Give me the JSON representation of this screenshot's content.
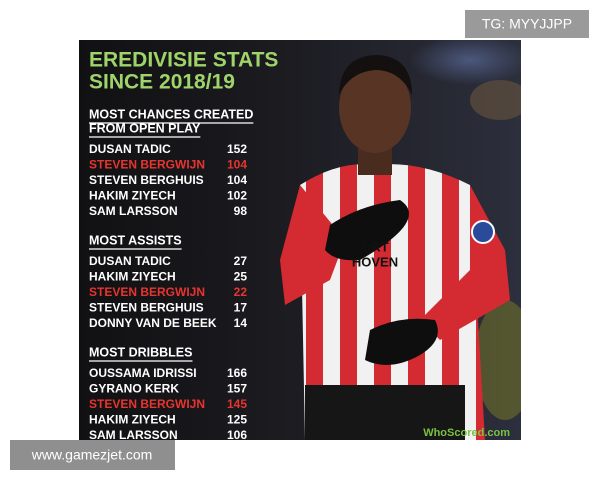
{
  "watermarks": {
    "top": "TG: MYYJJPP",
    "bottom": "www.gamezjet.com"
  },
  "title": [
    "EREDIVISIE STATS",
    "SINCE 2018/19"
  ],
  "highlight_color": "#e8342f",
  "sections": [
    {
      "heading": [
        "MOST CHANCES CREATED",
        "FROM OPEN PLAY"
      ],
      "rows": [
        {
          "name": "DUSAN TADIC",
          "value": 152
        },
        {
          "name": "STEVEN BERGWIJN",
          "value": 104,
          "highlight": true
        },
        {
          "name": "STEVEN BERGHUIS",
          "value": 104
        },
        {
          "name": "HAKIM ZIYECH",
          "value": 102
        },
        {
          "name": "SAM LARSSON",
          "value": 98
        }
      ]
    },
    {
      "heading": [
        "MOST ASSISTS"
      ],
      "rows": [
        {
          "name": "DUSAN TADIC",
          "value": 27
        },
        {
          "name": "HAKIM ZIYECH",
          "value": 25
        },
        {
          "name": "STEVEN BERGWIJN",
          "value": 22,
          "highlight": true
        },
        {
          "name": "STEVEN BERGHUIS",
          "value": 17
        },
        {
          "name": "DONNY VAN DE BEEK",
          "value": 14
        }
      ]
    },
    {
      "heading": [
        "MOST DRIBBLES"
      ],
      "rows": [
        {
          "name": "OUSSAMA IDRISSI",
          "value": 166
        },
        {
          "name": "GYRANO KERK",
          "value": 157
        },
        {
          "name": "STEVEN BERGWIJN",
          "value": 145,
          "highlight": true
        },
        {
          "name": "HAKIM ZIYECH",
          "value": 125
        },
        {
          "name": "SAM LARSSON",
          "value": 106
        }
      ]
    }
  ],
  "logo": "WhoScored.com"
}
